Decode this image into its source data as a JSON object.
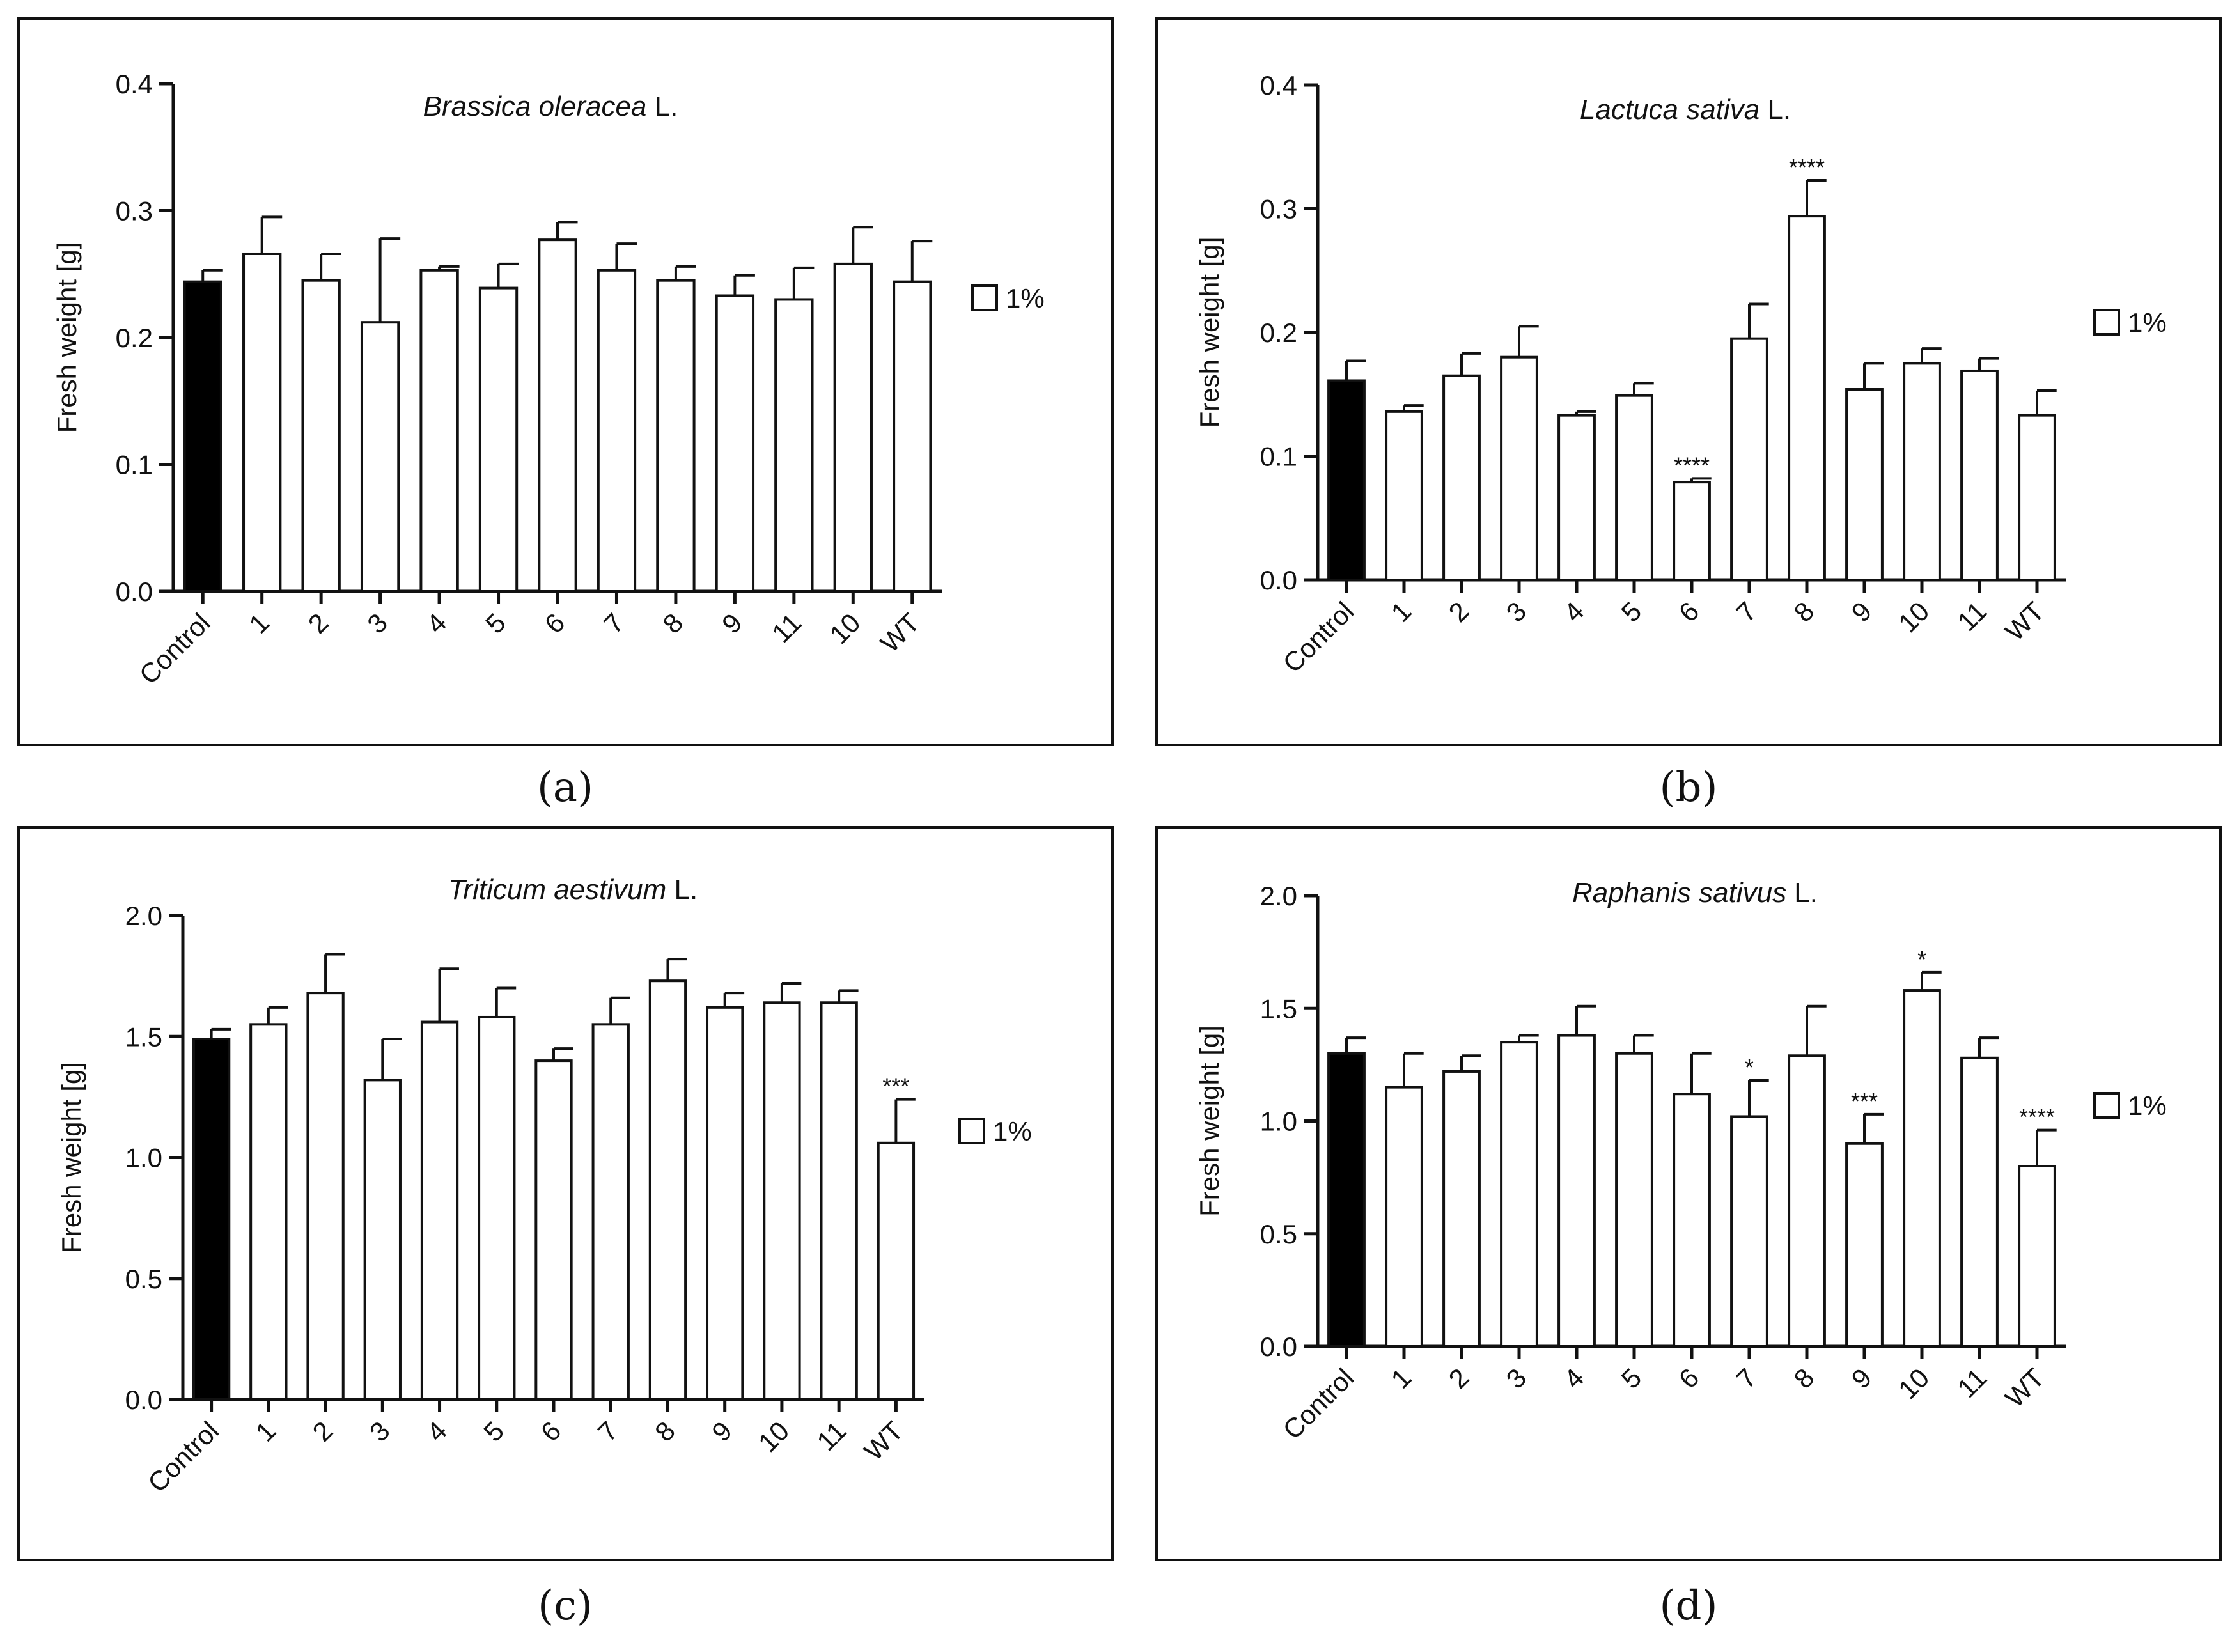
{
  "figure": {
    "captions": [
      "(a)",
      "(b)",
      "(c)",
      "(d)"
    ]
  },
  "chart_data": [
    {
      "type": "bar",
      "panel_label": "a",
      "title": "Brassica oleracea L.",
      "title_italic": "Brassica oleracea",
      "title_suffix": " L.",
      "ylabel": "Fresh weight [g]",
      "xlabel": "",
      "ylim": [
        0,
        0.4
      ],
      "yticks": [
        "0.0",
        "0.1",
        "0.2",
        "0.3",
        "0.4"
      ],
      "categories": [
        "Control",
        "1",
        "2",
        "3",
        "4",
        "5",
        "6",
        "7",
        "8",
        "9",
        "11",
        "10",
        "WT"
      ],
      "series": [
        {
          "name": "1%",
          "values": [
            0.244,
            0.266,
            0.245,
            0.212,
            0.253,
            0.239,
            0.277,
            0.253,
            0.245,
            0.233,
            0.23,
            0.258,
            0.244
          ]
        }
      ],
      "errors": [
        0.009,
        0.029,
        0.021,
        0.066,
        0.003,
        0.019,
        0.014,
        0.021,
        0.011,
        0.016,
        0.025,
        0.029,
        0.032
      ],
      "significance": [
        "",
        "",
        "",
        "",
        "",
        "",
        "",
        "",
        "",
        "",
        "",
        "",
        ""
      ],
      "legend": {
        "label": "1%",
        "position": "right"
      }
    },
    {
      "type": "bar",
      "panel_label": "b",
      "title": "Lactuca sativa L.",
      "title_italic": "Lactuca sativa",
      "title_suffix": " L.",
      "ylabel": "Fresh weight [g]",
      "xlabel": "",
      "ylim": [
        0,
        0.4
      ],
      "yticks": [
        "0.0",
        "0.1",
        "0.2",
        "0.3",
        "0.4"
      ],
      "categories": [
        "Control",
        "1",
        "2",
        "3",
        "4",
        "5",
        "6",
        "7",
        "8",
        "9",
        "10",
        "11",
        "WT"
      ],
      "series": [
        {
          "name": "1%",
          "values": [
            0.161,
            0.136,
            0.165,
            0.18,
            0.133,
            0.149,
            0.079,
            0.195,
            0.294,
            0.154,
            0.175,
            0.169,
            0.133
          ]
        }
      ],
      "errors": [
        0.016,
        0.005,
        0.018,
        0.025,
        0.003,
        0.01,
        0.003,
        0.028,
        0.029,
        0.021,
        0.012,
        0.01,
        0.02
      ],
      "significance": [
        "",
        "",
        "",
        "",
        "",
        "",
        "****",
        "",
        "****",
        "",
        "",
        "",
        ""
      ],
      "legend": {
        "label": "1%",
        "position": "right"
      }
    },
    {
      "type": "bar",
      "panel_label": "c",
      "title": "Triticum aestivum L.",
      "title_italic": "Triticum aestivum",
      "title_suffix": " L.",
      "ylabel": "Fresh weight [g]",
      "xlabel": "",
      "ylim": [
        0,
        2.0
      ],
      "yticks": [
        "0.0",
        "0.5",
        "1.0",
        "1.5",
        "2.0"
      ],
      "categories": [
        "Control",
        "1",
        "2",
        "3",
        "4",
        "5",
        "6",
        "7",
        "8",
        "9",
        "10",
        "11",
        "WT"
      ],
      "series": [
        {
          "name": "1%",
          "values": [
            1.49,
            1.55,
            1.68,
            1.32,
            1.56,
            1.58,
            1.4,
            1.55,
            1.73,
            1.62,
            1.64,
            1.64,
            1.06
          ]
        }
      ],
      "errors": [
        0.04,
        0.07,
        0.16,
        0.17,
        0.22,
        0.12,
        0.05,
        0.11,
        0.09,
        0.06,
        0.08,
        0.05,
        0.18
      ],
      "significance": [
        "",
        "",
        "",
        "",
        "",
        "",
        "",
        "",
        "",
        "",
        "",
        "",
        "***"
      ],
      "legend": {
        "label": "1%",
        "position": "right"
      }
    },
    {
      "type": "bar",
      "panel_label": "d",
      "title": "Raphanis sativus L.",
      "title_italic": "Raphanis sativus",
      "title_suffix": " L.",
      "ylabel": "Fresh weight [g]",
      "xlabel": "",
      "ylim": [
        0,
        2.0
      ],
      "yticks": [
        "0.0",
        "0.5",
        "1.0",
        "1.5",
        "2.0"
      ],
      "categories": [
        "Control",
        "1",
        "2",
        "3",
        "4",
        "5",
        "6",
        "7",
        "8",
        "9",
        "10",
        "11",
        "WT"
      ],
      "series": [
        {
          "name": "1%",
          "values": [
            1.3,
            1.15,
            1.22,
            1.35,
            1.38,
            1.3,
            1.12,
            1.02,
            1.29,
            0.9,
            1.58,
            1.28,
            0.8
          ]
        }
      ],
      "errors": [
        0.07,
        0.15,
        0.07,
        0.03,
        0.13,
        0.08,
        0.18,
        0.16,
        0.22,
        0.13,
        0.08,
        0.09,
        0.16
      ],
      "significance": [
        "",
        "",
        "",
        "",
        "",
        "",
        "",
        "*",
        "",
        "***",
        "*",
        "",
        "****"
      ],
      "legend": {
        "label": "1%",
        "position": "right"
      }
    }
  ]
}
